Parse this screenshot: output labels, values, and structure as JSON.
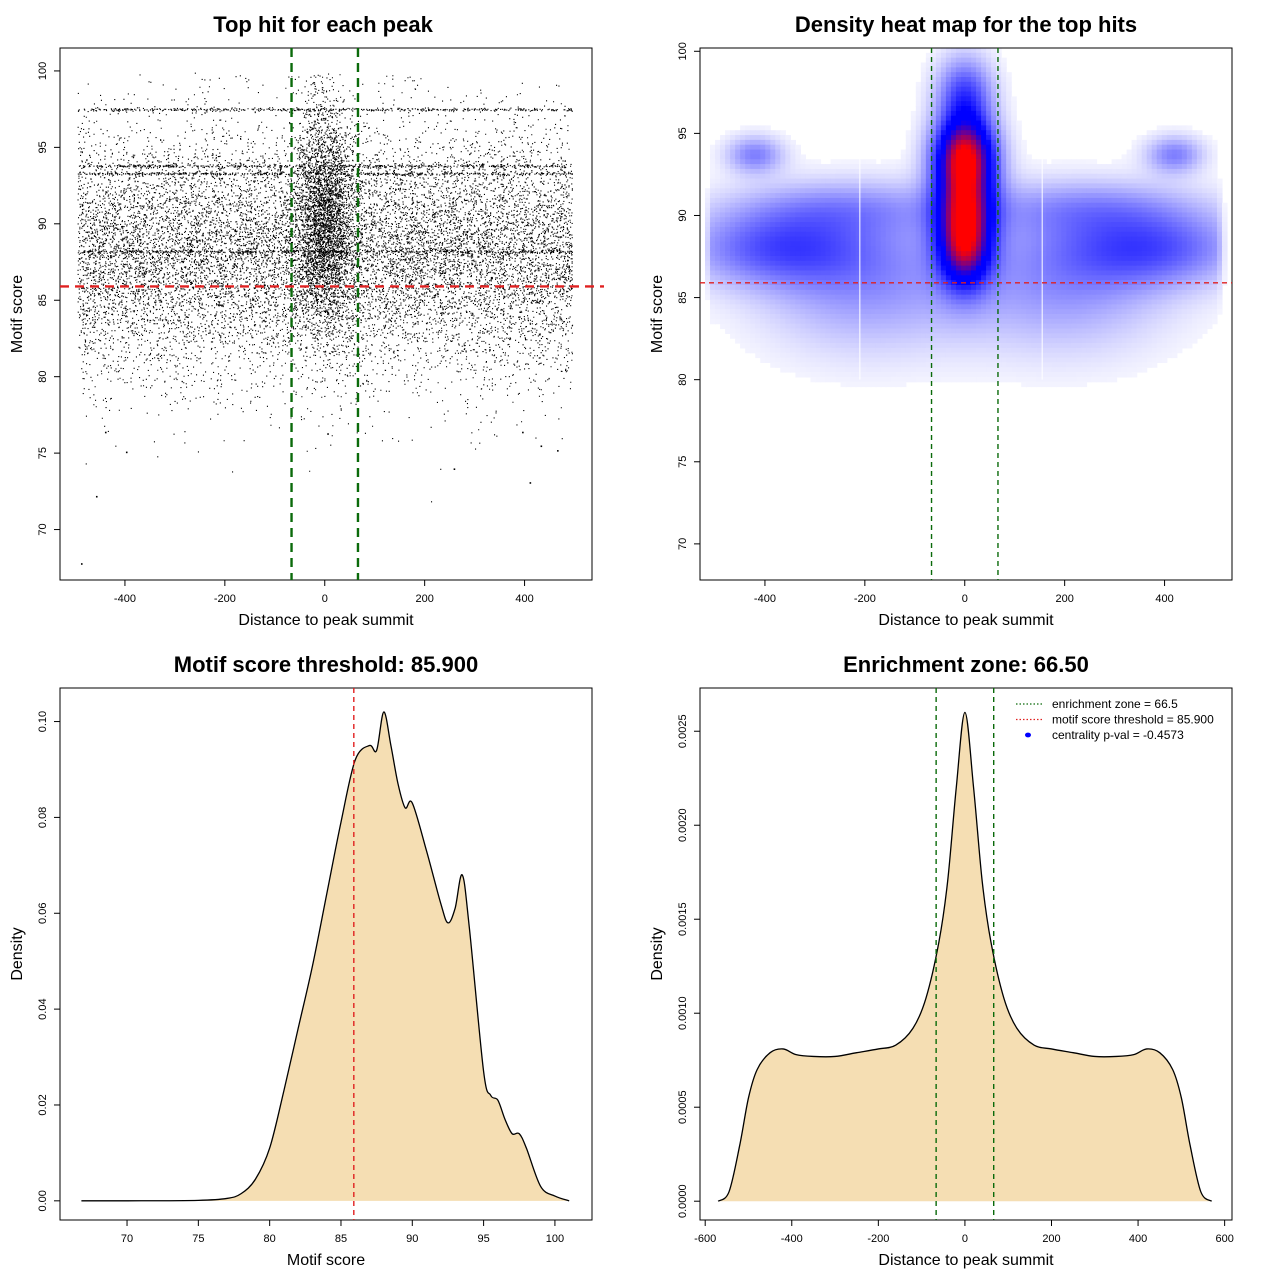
{
  "colors": {
    "points": "#000000",
    "threshold_line": "#e02020",
    "zone_line": "#0a6a0a",
    "density_fill": "#f5deb3",
    "heat_low": "#0000ff",
    "heat_high": "#ff0000"
  },
  "chart_data": [
    {
      "id": "scatter",
      "type": "scatter",
      "title": "Top hit for each peak",
      "xlabel": "Distance to peak summit",
      "ylabel": "Motif score",
      "xlim": [
        -530,
        535
      ],
      "ylim": [
        66.7,
        101.5
      ],
      "xticks": [
        -400,
        -200,
        0,
        200,
        400
      ],
      "yticks": [
        70,
        75,
        80,
        85,
        90,
        95,
        100
      ],
      "threshold_y": 85.9,
      "zone_x": [
        -66.5,
        66.5
      ],
      "points_note": "dense cloud of ~20000 top-hit points across x -500..500, concentrated near x 0",
      "sample_outliers": [
        {
          "x": -488,
          "y": 67.8
        },
        {
          "x": -458,
          "y": 72.2
        },
        {
          "x": -398,
          "y": 75.1
        },
        {
          "x": 258,
          "y": 74.0
        },
        {
          "x": 432,
          "y": 75.5
        },
        {
          "x": 465,
          "y": 75.2
        },
        {
          "x": 410,
          "y": 73.1
        },
        {
          "x": 395,
          "y": 76.4
        },
        {
          "x": -440,
          "y": 76.4
        },
        {
          "x": 5,
          "y": 76.3
        }
      ]
    },
    {
      "id": "heatmap",
      "type": "heatmap",
      "title": "Density heat map for the top hits",
      "xlabel": "Distance to peak summit",
      "ylabel": "Motif score",
      "xlim": [
        -530,
        535
      ],
      "ylim": [
        67.8,
        100.2
      ],
      "xticks": [
        -400,
        -200,
        0,
        200,
        400
      ],
      "yticks": [
        70,
        75,
        80,
        85,
        90,
        95,
        100
      ],
      "threshold_y": 85.9,
      "zone_x": [
        -66.5,
        66.5
      ],
      "blobs": [
        {
          "x": 0,
          "y": 91.5,
          "sx": 40,
          "sy": 3.0,
          "w": 1.0
        },
        {
          "x": 0,
          "y": 88.0,
          "sx": 35,
          "sy": 1.6,
          "w": 0.55
        },
        {
          "x": 0,
          "y": 93.8,
          "sx": 45,
          "sy": 1.4,
          "w": 0.5
        },
        {
          "x": 0,
          "y": 97.5,
          "sx": 40,
          "sy": 1.6,
          "w": 0.35
        },
        {
          "x": -380,
          "y": 88.0,
          "sx": 130,
          "sy": 1.6,
          "w": 0.35
        },
        {
          "x": 380,
          "y": 88.0,
          "sx": 130,
          "sy": 1.6,
          "w": 0.35
        },
        {
          "x": -200,
          "y": 86.0,
          "sx": 150,
          "sy": 3.0,
          "w": 0.25
        },
        {
          "x": 200,
          "y": 86.0,
          "sx": 150,
          "sy": 3.0,
          "w": 0.25
        },
        {
          "x": -420,
          "y": 93.7,
          "sx": 40,
          "sy": 0.8,
          "w": 0.3
        },
        {
          "x": 420,
          "y": 93.7,
          "sx": 40,
          "sy": 0.8,
          "w": 0.3
        },
        {
          "x": -250,
          "y": 90.5,
          "sx": 160,
          "sy": 1.2,
          "w": 0.2
        },
        {
          "x": 250,
          "y": 90.5,
          "sx": 160,
          "sy": 1.2,
          "w": 0.2
        }
      ]
    },
    {
      "id": "score-density",
      "type": "area",
      "title": "Motif score threshold: 85.900",
      "xlabel": "Motif score",
      "ylabel": "Density",
      "xlim": [
        65.3,
        102.6
      ],
      "ylim": [
        -0.004,
        0.107
      ],
      "xticks": [
        70,
        75,
        80,
        85,
        90,
        95,
        100
      ],
      "yticks": [
        0.0,
        0.02,
        0.04,
        0.06,
        0.08,
        0.1
      ],
      "ytick_labels": [
        "0.00",
        "0.02",
        "0.04",
        "0.06",
        "0.08",
        "0.10"
      ],
      "threshold_x": 85.9,
      "x": [
        66.8,
        70,
        75,
        77,
        78,
        79,
        80,
        81,
        82,
        83,
        84,
        85,
        86,
        87,
        87.5,
        88,
        88.5,
        89,
        89.5,
        90,
        91,
        92,
        92.5,
        93,
        93.5,
        94,
        95,
        95.5,
        96,
        96.5,
        97,
        97.5,
        98,
        99,
        100,
        101
      ],
      "values": [
        0.0,
        0.0,
        0.0001,
        0.0005,
        0.0015,
        0.0045,
        0.011,
        0.023,
        0.036,
        0.049,
        0.064,
        0.079,
        0.092,
        0.095,
        0.094,
        0.102,
        0.095,
        0.087,
        0.082,
        0.083,
        0.073,
        0.062,
        0.058,
        0.061,
        0.068,
        0.057,
        0.027,
        0.022,
        0.021,
        0.017,
        0.014,
        0.014,
        0.011,
        0.003,
        0.001,
        0.0
      ]
    },
    {
      "id": "distance-density",
      "type": "area",
      "title": "Enrichment zone: 66.50",
      "xlabel": "Distance to peak summit",
      "ylabel": "Density",
      "xlim": [
        -612,
        617
      ],
      "ylim": [
        -0.0001,
        0.00273
      ],
      "xticks": [
        -600,
        -400,
        -200,
        0,
        200,
        400,
        600
      ],
      "yticks": [
        0.0,
        0.0005,
        0.001,
        0.0015,
        0.002,
        0.0025
      ],
      "ytick_labels": [
        "0.0000",
        "0.0005",
        "0.0010",
        "0.0015",
        "0.0020",
        "0.0025"
      ],
      "zone_x": [
        -66.5,
        66.5
      ],
      "x": [
        -570,
        -545,
        -520,
        -500,
        -480,
        -450,
        -420,
        -390,
        -350,
        -300,
        -250,
        -200,
        -160,
        -120,
        -90,
        -60,
        -40,
        -20,
        0,
        20,
        40,
        60,
        90,
        120,
        160,
        200,
        250,
        300,
        350,
        390,
        420,
        450,
        480,
        500,
        520,
        545,
        570
      ],
      "values": [
        0.0,
        5e-05,
        0.0003,
        0.00055,
        0.0007,
        0.00079,
        0.00081,
        0.00078,
        0.00077,
        0.00077,
        0.00079,
        0.00081,
        0.00083,
        0.00092,
        0.00108,
        0.00138,
        0.0017,
        0.0022,
        0.0026,
        0.0022,
        0.0017,
        0.00138,
        0.00108,
        0.00092,
        0.00083,
        0.00081,
        0.00079,
        0.00077,
        0.00077,
        0.00078,
        0.00081,
        0.00079,
        0.0007,
        0.00055,
        0.0003,
        5e-05,
        0.0
      ],
      "legend": {
        "position": "top-right",
        "entries": [
          {
            "label": "enrichment zone = 66.5",
            "style": "dotted",
            "color": "#0a6a0a"
          },
          {
            "label": "motif score threshold = 85.900",
            "style": "dotted",
            "color": "#e02020"
          },
          {
            "label": "centrality p-val = -0.4573",
            "style": "point",
            "color": "#0000ff"
          }
        ]
      }
    }
  ]
}
